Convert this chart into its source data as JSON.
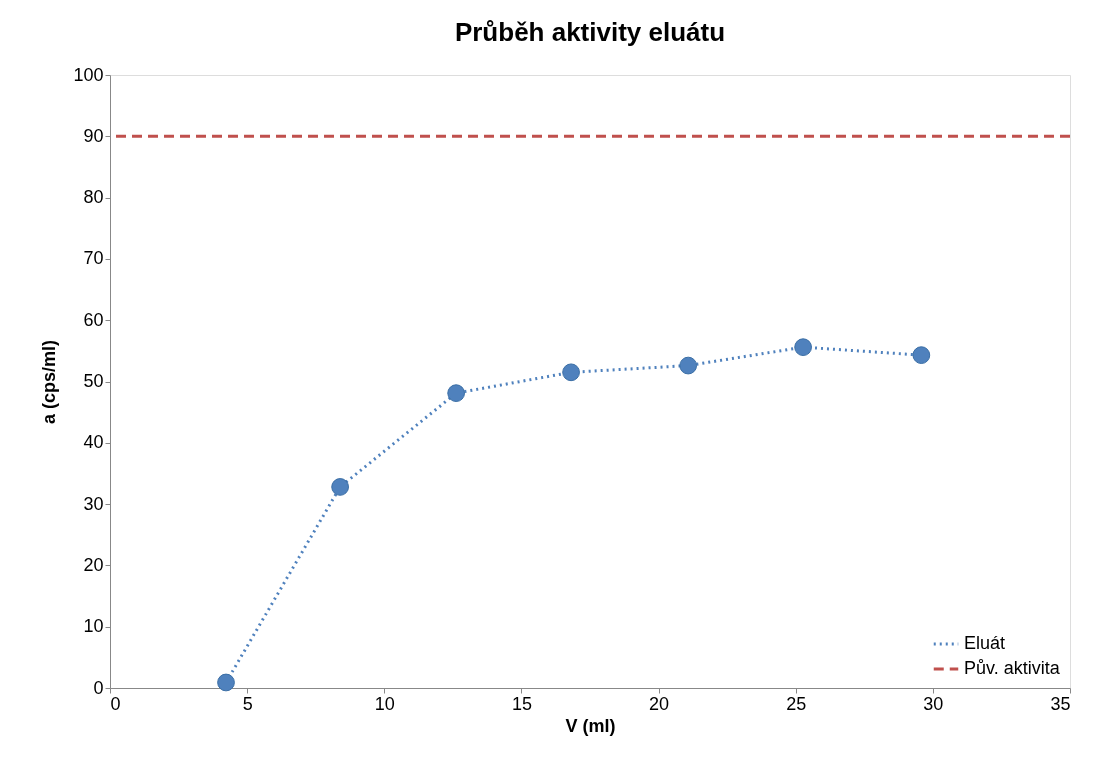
{
  "chart_data": {
    "type": "line",
    "title": "Průběh aktivity eluátu",
    "xlabel": "V (ml)",
    "ylabel": "a (cps/ml)",
    "xlim": [
      0,
      35
    ],
    "xticks": [
      0,
      5,
      10,
      15,
      20,
      25,
      30,
      35
    ],
    "ylim": [
      0,
      100
    ],
    "yticks": [
      0,
      10,
      20,
      30,
      40,
      50,
      60,
      70,
      80,
      90,
      100
    ],
    "grid": false,
    "legend": "bottom right",
    "marker": "circle",
    "line_style": "dotted",
    "series": [
      {
        "name": "Eluát",
        "color": "#4f81bd",
        "x": [
          4.23,
          8.39,
          12.62,
          16.81,
          21.08,
          25.27,
          29.58
        ],
        "values": [
          0.9,
          32.8,
          48.1,
          51.5,
          52.6,
          55.6,
          54.3
        ]
      }
    ],
    "ref_lines": [
      {
        "axis": "y",
        "value": 90,
        "label": "Pův. aktivita",
        "color": "#c0504d",
        "line_style": "dashed"
      }
    ]
  }
}
